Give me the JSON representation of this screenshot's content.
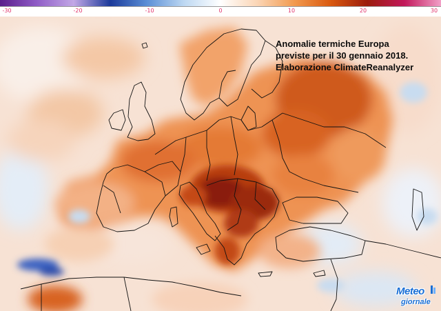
{
  "colorbar": {
    "ticks": [
      {
        "label": "-30",
        "value": -30
      },
      {
        "label": "-20",
        "value": -20
      },
      {
        "label": "-10",
        "value": -10
      },
      {
        "label": "0",
        "value": 0
      },
      {
        "label": "10",
        "value": 10
      },
      {
        "label": "20",
        "value": 20
      },
      {
        "label": "30",
        "value": 30
      }
    ],
    "range": [
      -30,
      30
    ],
    "stops": [
      "#5a1d8a",
      "#8f5cc6",
      "#c2a8e6",
      "#1b3a9a",
      "#5b8fd6",
      "#bdd8f2",
      "#ffffff",
      "#fbd6b6",
      "#f29a4f",
      "#d9590f",
      "#9b1c0c",
      "#c2185b",
      "#f2a0c8"
    ]
  },
  "title": {
    "line1": "Anomalie termiche Europa",
    "line2": "previste per il 30 gennaio 2018.",
    "line3": "Elaborazione ClimateReanalyzer"
  },
  "logo": {
    "word1": "Meteo",
    "word2": "giornale"
  },
  "map": {
    "colors": {
      "sea_pale": "#f7e2d4",
      "warm_light": "#f6b889",
      "warm": "#ee9353",
      "warm_strong": "#d86420",
      "hot": "#b83c10",
      "very_hot": "#8a1a0c",
      "cool": "#b9d3ee",
      "cold": "#3d63c2",
      "border": "#111111"
    }
  }
}
